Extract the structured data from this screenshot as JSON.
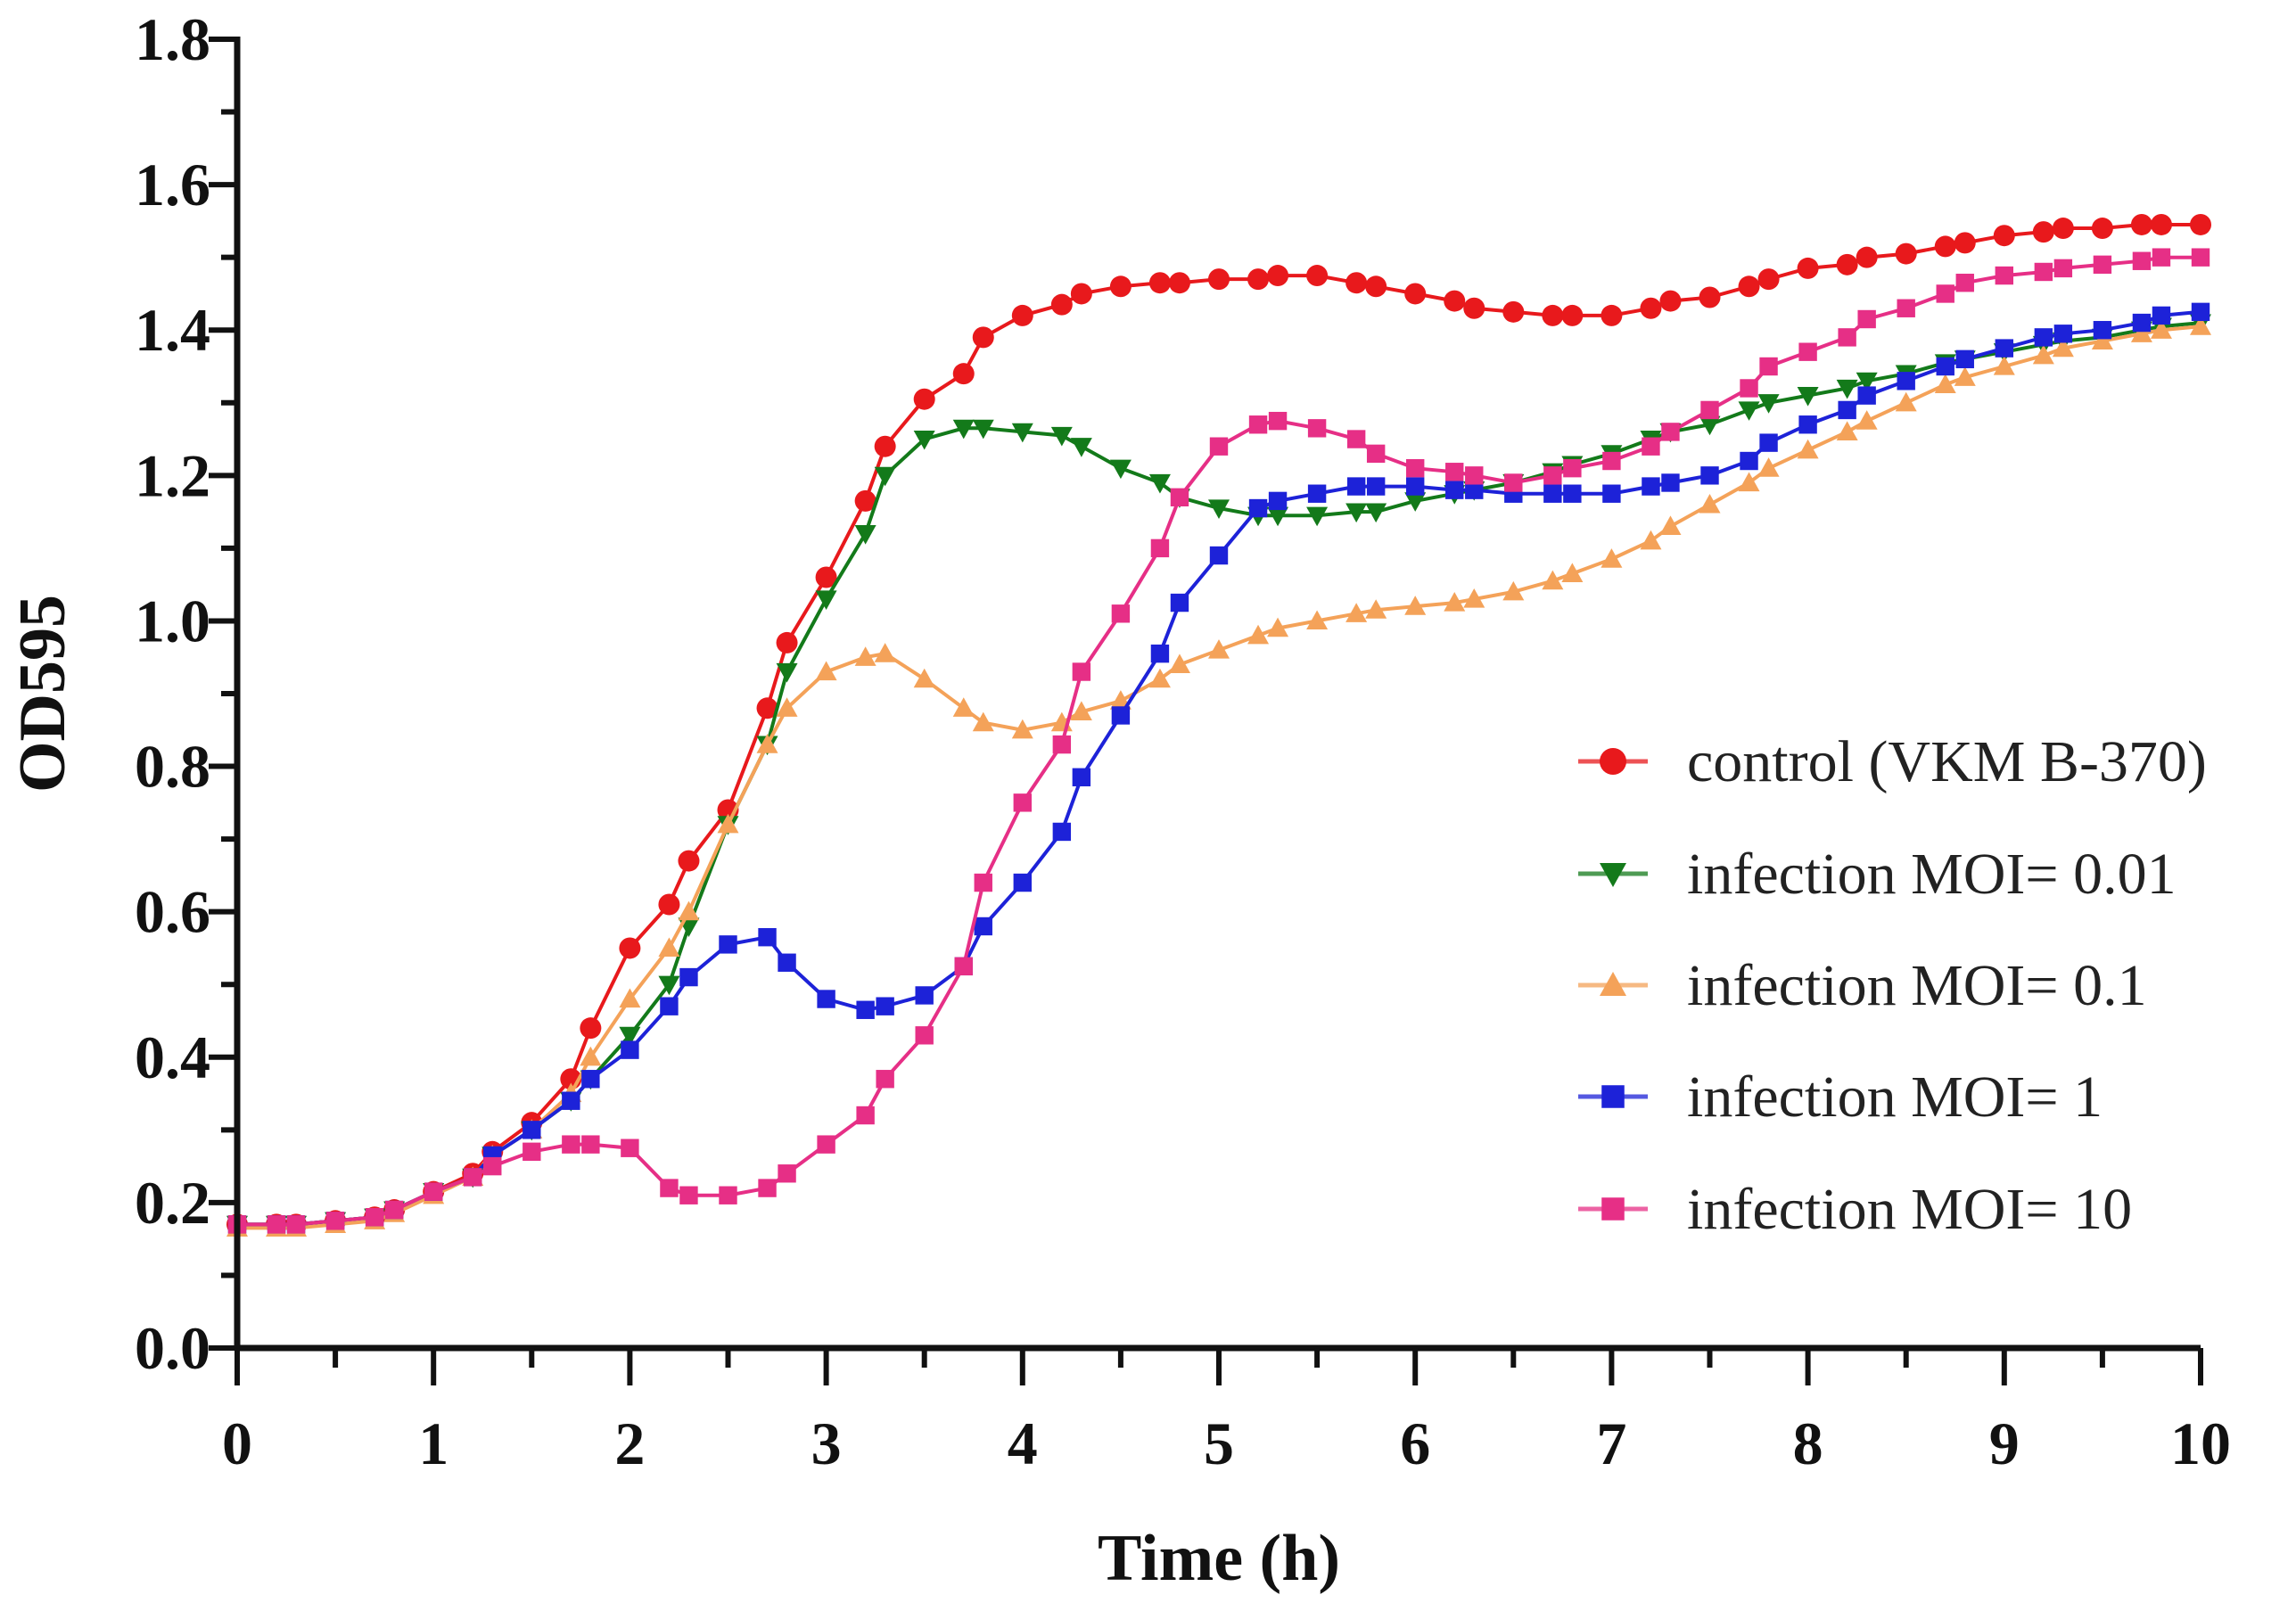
{
  "chart_data": {
    "type": "line",
    "title": "",
    "xlabel": "Time (h)",
    "ylabel": "OD595",
    "xlim": [
      0,
      10
    ],
    "ylim": [
      0,
      1.8
    ],
    "grid": false,
    "legend_position": "right",
    "x_ticks": [
      "0",
      "1",
      "2",
      "3",
      "4",
      "5",
      "6",
      "7",
      "8",
      "9",
      "10"
    ],
    "y_ticks": [
      "0.0",
      "0.2",
      "0.4",
      "0.6",
      "0.8",
      "1.0",
      "1.2",
      "1.4",
      "1.6",
      "1.8"
    ],
    "x": [
      0,
      0.2,
      0.3,
      0.5,
      0.7,
      0.8,
      1,
      1.2,
      1.3,
      1.5,
      1.7,
      1.8,
      2,
      2.2,
      2.3,
      2.5,
      2.7,
      2.8,
      3,
      3.2,
      3.3,
      3.5,
      3.7,
      3.8,
      4,
      4.2,
      4.3,
      4.5,
      4.7,
      4.8,
      5,
      5.2,
      5.3,
      5.5,
      5.7,
      5.8,
      6,
      6.2,
      6.3,
      6.5,
      6.7,
      6.8,
      7,
      7.2,
      7.3,
      7.5,
      7.7,
      7.8,
      8,
      8.2,
      8.3,
      8.5,
      8.7,
      8.8,
      9,
      9.2,
      9.3,
      9.5,
      9.7,
      9.8,
      10
    ],
    "series": [
      {
        "name": "control (VKM B-370)",
        "color": "#e8191c",
        "marker": "circle",
        "values": [
          0.17,
          0.17,
          0.17,
          0.175,
          0.18,
          0.19,
          0.215,
          0.24,
          0.27,
          0.31,
          0.37,
          0.44,
          0.55,
          0.61,
          0.67,
          0.74,
          0.88,
          0.97,
          1.06,
          1.165,
          1.24,
          1.305,
          1.34,
          1.39,
          1.42,
          1.435,
          1.45,
          1.46,
          1.465,
          1.465,
          1.47,
          1.47,
          1.475,
          1.475,
          1.465,
          1.46,
          1.45,
          1.44,
          1.43,
          1.425,
          1.42,
          1.42,
          1.42,
          1.43,
          1.44,
          1.445,
          1.46,
          1.47,
          1.485,
          1.49,
          1.5,
          1.505,
          1.515,
          1.52,
          1.53,
          1.535,
          1.54,
          1.54,
          1.545,
          1.545,
          1.545
        ]
      },
      {
        "name": "infection MOI= 0.01",
        "color": "#137a1a",
        "marker": "triangle-down",
        "values": [
          0.17,
          0.17,
          0.17,
          0.175,
          0.18,
          0.19,
          0.215,
          0.235,
          0.265,
          0.3,
          0.34,
          0.37,
          0.43,
          0.5,
          0.58,
          0.72,
          0.83,
          0.93,
          1.03,
          1.12,
          1.2,
          1.25,
          1.265,
          1.265,
          1.26,
          1.255,
          1.24,
          1.21,
          1.19,
          1.17,
          1.155,
          1.145,
          1.145,
          1.145,
          1.15,
          1.15,
          1.165,
          1.175,
          1.18,
          1.19,
          1.205,
          1.215,
          1.23,
          1.25,
          1.26,
          1.27,
          1.29,
          1.3,
          1.31,
          1.32,
          1.33,
          1.34,
          1.355,
          1.36,
          1.37,
          1.38,
          1.385,
          1.39,
          1.4,
          1.405,
          1.41
        ]
      },
      {
        "name": "infection MOI= 0.1",
        "color": "#f4a259",
        "marker": "triangle-up",
        "values": [
          0.165,
          0.165,
          0.165,
          0.17,
          0.175,
          0.185,
          0.21,
          0.235,
          0.265,
          0.3,
          0.35,
          0.4,
          0.48,
          0.55,
          0.6,
          0.72,
          0.83,
          0.88,
          0.93,
          0.95,
          0.955,
          0.92,
          0.88,
          0.86,
          0.85,
          0.86,
          0.875,
          0.89,
          0.92,
          0.94,
          0.96,
          0.98,
          0.99,
          1.0,
          1.01,
          1.015,
          1.02,
          1.025,
          1.03,
          1.04,
          1.055,
          1.065,
          1.085,
          1.11,
          1.13,
          1.16,
          1.19,
          1.21,
          1.235,
          1.26,
          1.275,
          1.3,
          1.325,
          1.335,
          1.35,
          1.365,
          1.375,
          1.385,
          1.395,
          1.4,
          1.405
        ]
      },
      {
        "name": "infection MOI= 1",
        "color": "#1d22d8",
        "marker": "square",
        "values": [
          0.17,
          0.17,
          0.17,
          0.175,
          0.18,
          0.19,
          0.215,
          0.235,
          0.265,
          0.3,
          0.34,
          0.37,
          0.41,
          0.47,
          0.51,
          0.555,
          0.565,
          0.53,
          0.48,
          0.465,
          0.47,
          0.485,
          0.525,
          0.58,
          0.64,
          0.71,
          0.785,
          0.87,
          0.955,
          1.025,
          1.09,
          1.155,
          1.165,
          1.175,
          1.185,
          1.185,
          1.185,
          1.18,
          1.18,
          1.175,
          1.175,
          1.175,
          1.175,
          1.185,
          1.19,
          1.2,
          1.22,
          1.245,
          1.27,
          1.29,
          1.31,
          1.33,
          1.35,
          1.36,
          1.375,
          1.39,
          1.395,
          1.4,
          1.41,
          1.42,
          1.425
        ]
      },
      {
        "name": "infection MOI= 10",
        "color": "#e62f86",
        "marker": "square",
        "values": [
          0.17,
          0.17,
          0.17,
          0.175,
          0.18,
          0.19,
          0.215,
          0.235,
          0.25,
          0.27,
          0.28,
          0.28,
          0.275,
          0.22,
          0.21,
          0.21,
          0.22,
          0.24,
          0.28,
          0.32,
          0.37,
          0.43,
          0.525,
          0.64,
          0.75,
          0.83,
          0.93,
          1.01,
          1.1,
          1.17,
          1.24,
          1.27,
          1.275,
          1.265,
          1.25,
          1.23,
          1.21,
          1.205,
          1.2,
          1.19,
          1.2,
          1.21,
          1.22,
          1.24,
          1.26,
          1.29,
          1.32,
          1.35,
          1.37,
          1.39,
          1.415,
          1.43,
          1.45,
          1.465,
          1.475,
          1.48,
          1.485,
          1.49,
          1.495,
          1.5,
          1.5
        ]
      }
    ]
  }
}
